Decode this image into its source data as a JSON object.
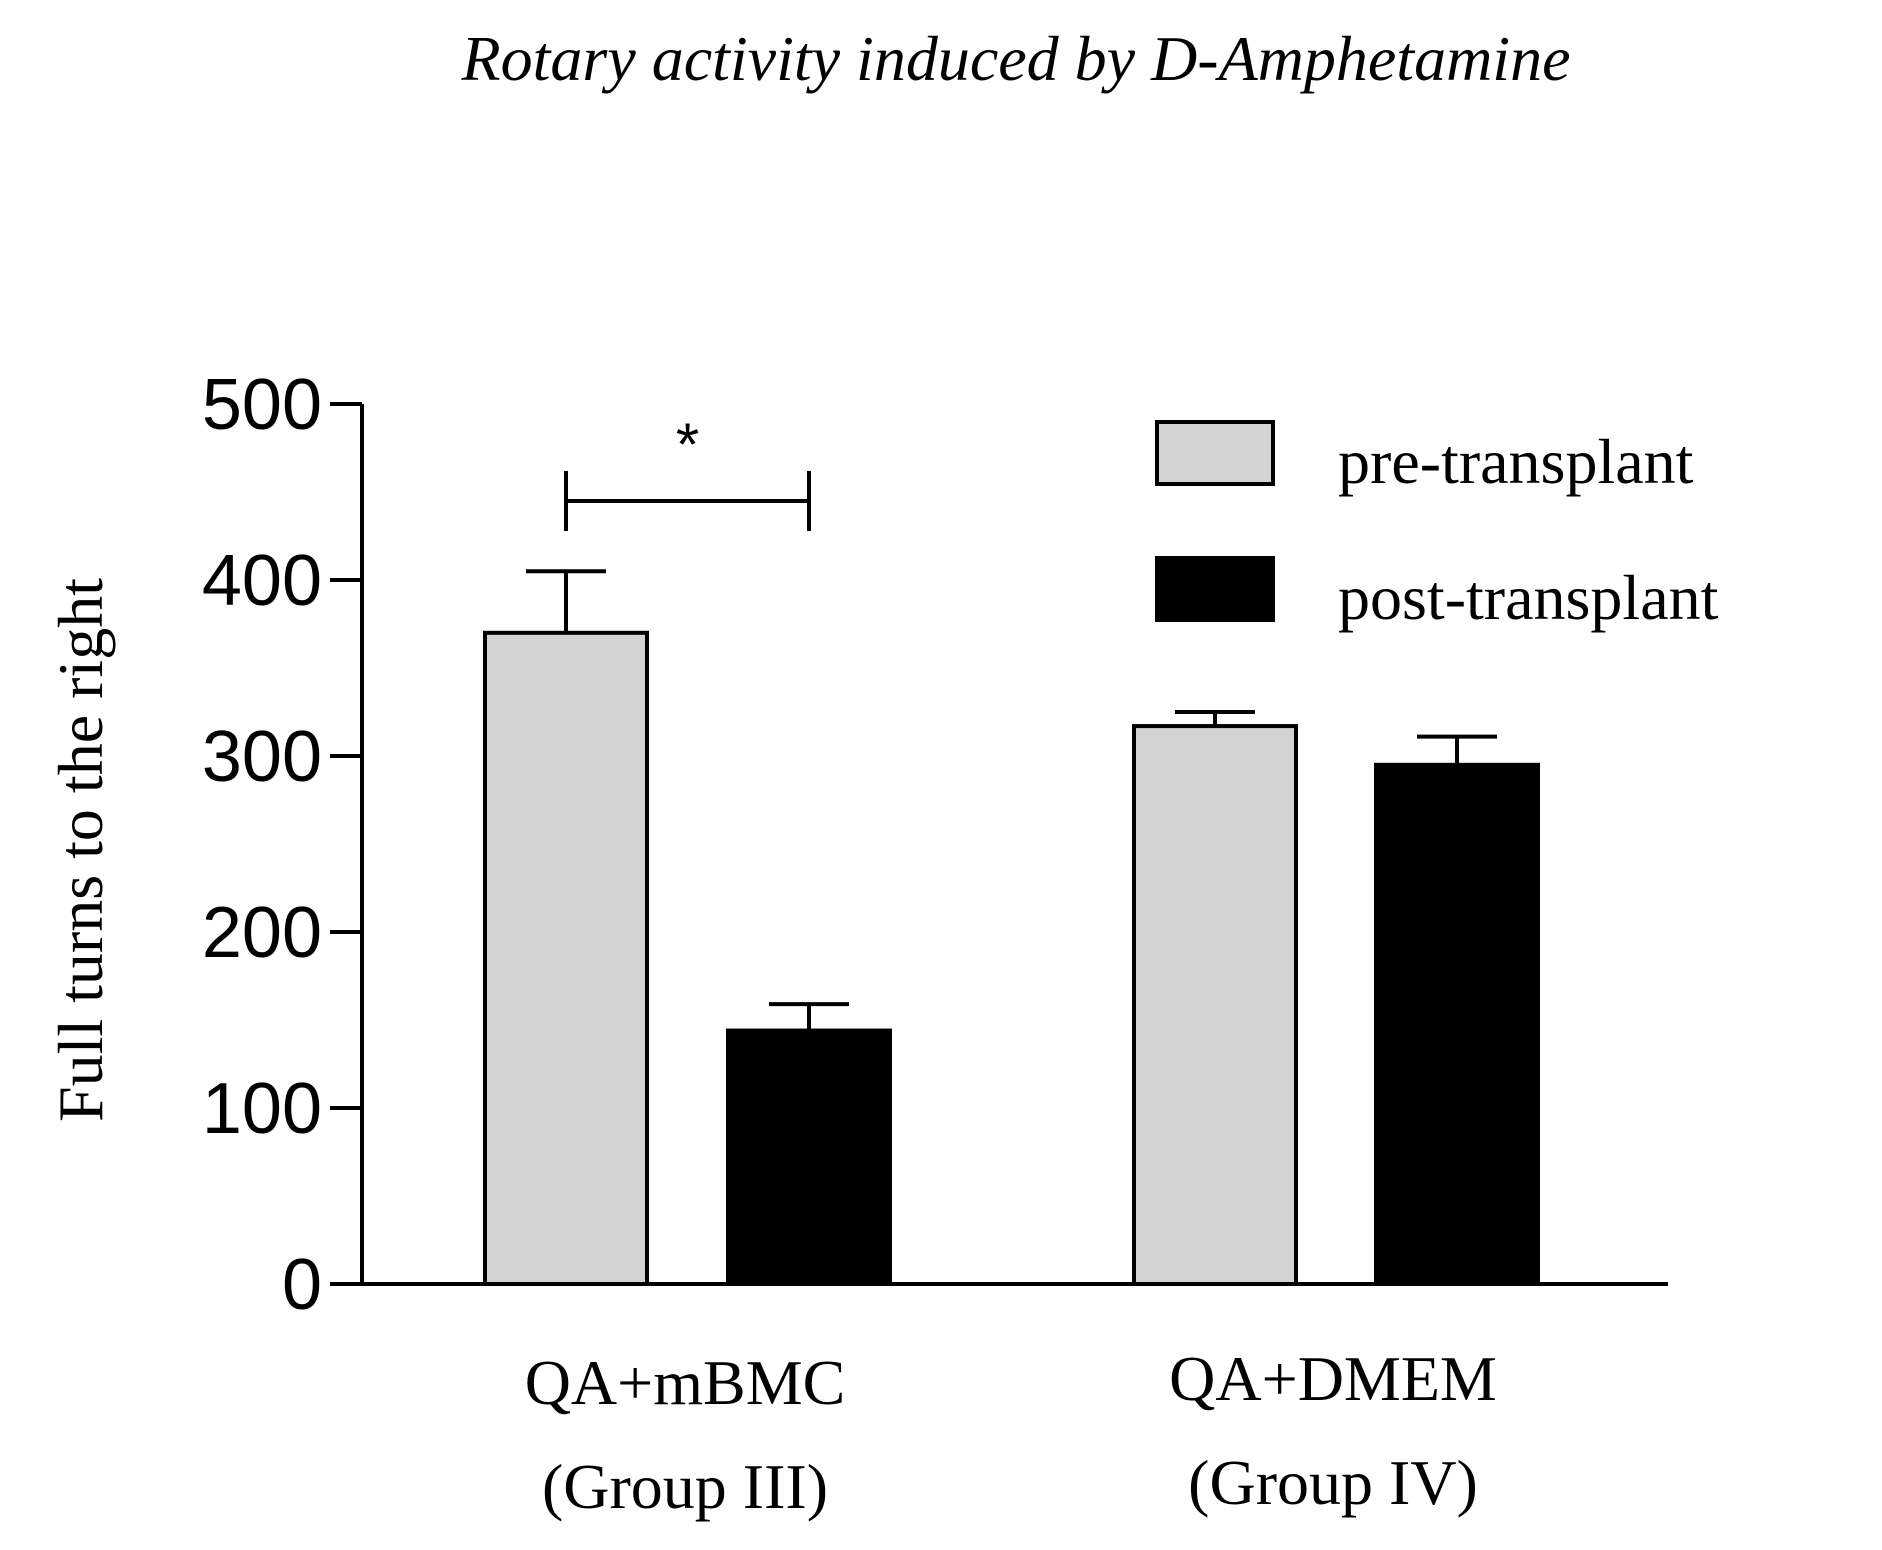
{
  "chart_data": {
    "type": "bar",
    "title": "Rotary activity induced by D-Amphetamine",
    "xlabel": "",
    "ylabel": "Full turns to the right",
    "ylim": [
      0,
      500
    ],
    "yticks": [
      "0",
      "100",
      "200",
      "300",
      "400",
      "500"
    ],
    "categories": [
      {
        "line1": "QA+mBMC",
        "line2": "(Group III)"
      },
      {
        "line1": "QA+DMEM",
        "line2": "(Group IV)"
      }
    ],
    "series": [
      {
        "name": "pre-transplant",
        "color": "#d3d3d3",
        "values": [
          370,
          317
        ],
        "errors": [
          35,
          8
        ]
      },
      {
        "name": "post-transplant",
        "color": "#000000",
        "values": [
          144,
          295
        ],
        "errors": [
          15,
          16
        ]
      }
    ],
    "annotations": [
      {
        "text": "*",
        "group": 0,
        "from_series": 0,
        "to_series": 1
      }
    ],
    "legend": "top-right"
  }
}
